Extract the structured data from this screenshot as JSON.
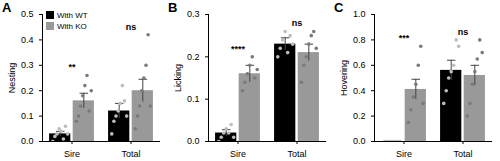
{
  "chart_data": [
    {
      "type": "bar",
      "title": "A",
      "y_label": "Nesting",
      "categories": [
        "Sire",
        "Total"
      ],
      "legend": "top-left",
      "ylim": [
        0,
        0.5
      ],
      "yticks": [
        {
          "value": 0,
          "label": "0.0"
        },
        {
          "value": 0.1,
          "label": "0.1"
        },
        {
          "value": 0.2,
          "label": "0.2"
        },
        {
          "value": 0.3,
          "label": "0.3"
        },
        {
          "value": 0.4,
          "label": "0.4"
        },
        {
          "value": 0.5,
          "label": "0.5"
        }
      ],
      "series": [
        {
          "name": "With WT",
          "color": "#000000",
          "values": [
            0.03,
            0.12
          ],
          "errors": [
            0.01,
            0.03
          ],
          "points": [
            [
              0.0,
              0.02,
              0.03,
              0.05,
              0.04,
              0.01,
              0.06,
              0.03
            ],
            [
              0.03,
              0.08,
              0.1,
              0.12,
              0.15,
              0.22,
              0.16,
              0.1
            ]
          ]
        },
        {
          "name": "With KO",
          "color": "#999999",
          "values": [
            0.16,
            0.2
          ],
          "errors": [
            0.03,
            0.045
          ],
          "points": [
            [
              0.08,
              0.1,
              0.14,
              0.18,
              0.22,
              0.26,
              0.12,
              0.2
            ],
            [
              0.05,
              0.1,
              0.14,
              0.2,
              0.25,
              0.3,
              0.42,
              0.14
            ]
          ]
        }
      ],
      "annotations": [
        {
          "category": "Sire",
          "text": "**"
        },
        {
          "category": "Total",
          "text": "ns"
        }
      ]
    },
    {
      "type": "bar",
      "title": "B",
      "y_label": "Licking",
      "categories": [
        "Sire",
        "Total"
      ],
      "ylim": [
        0,
        0.3
      ],
      "yticks": [
        {
          "value": 0,
          "label": "0.0"
        },
        {
          "value": 0.1,
          "label": "0.1"
        },
        {
          "value": 0.2,
          "label": "0.2"
        },
        {
          "value": 0.3,
          "label": "0.3"
        }
      ],
      "series": [
        {
          "name": "With WT",
          "color": "#000000",
          "values": [
            0.02,
            0.23
          ],
          "errors": [
            0.008,
            0.015
          ],
          "points": [
            [
              0.0,
              0.01,
              0.02,
              0.03,
              0.02,
              0.04,
              0.01
            ],
            [
              0.2,
              0.22,
              0.24,
              0.26,
              0.21,
              0.25,
              0.23
            ]
          ]
        },
        {
          "name": "With KO",
          "color": "#999999",
          "values": [
            0.16,
            0.21
          ],
          "errors": [
            0.02,
            0.02
          ],
          "points": [
            [
              0.12,
              0.14,
              0.16,
              0.18,
              0.2,
              0.15,
              0.17
            ],
            [
              0.14,
              0.18,
              0.2,
              0.23,
              0.25,
              0.26,
              0.22
            ]
          ]
        }
      ],
      "annotations": [
        {
          "category": "Sire",
          "text": "****"
        },
        {
          "category": "Total",
          "text": "ns"
        }
      ]
    },
    {
      "type": "bar",
      "title": "C",
      "y_label": "Hovering",
      "categories": [
        "Sire",
        "Total"
      ],
      "ylim": [
        0,
        1
      ],
      "yticks": [
        {
          "value": 0,
          "label": "0.0"
        },
        {
          "value": 0.2,
          "label": "0.2"
        },
        {
          "value": 0.4,
          "label": "0.4"
        },
        {
          "value": 0.6,
          "label": "0.6"
        },
        {
          "value": 0.8,
          "label": "0.8"
        },
        {
          "value": 1,
          "label": "1.0"
        }
      ],
      "series": [
        {
          "name": "With WT",
          "color": "#000000",
          "values": [
            0.0,
            0.56
          ],
          "errors": [
            0.0,
            0.08
          ],
          "points": [
            [
              0,
              0,
              0,
              0,
              0,
              0,
              0
            ],
            [
              0.3,
              0.4,
              0.5,
              0.55,
              0.6,
              0.8,
              0.75
            ]
          ]
        },
        {
          "name": "With KO",
          "color": "#999999",
          "values": [
            0.41,
            0.52
          ],
          "errors": [
            0.08,
            0.08
          ],
          "points": [
            [
              0.15,
              0.25,
              0.35,
              0.45,
              0.6,
              0.75,
              0.3
            ],
            [
              0.2,
              0.3,
              0.45,
              0.55,
              0.65,
              0.8,
              0.7
            ]
          ]
        }
      ],
      "annotations": [
        {
          "category": "Sire",
          "text": "***"
        },
        {
          "category": "Total",
          "text": "ns"
        }
      ]
    }
  ]
}
